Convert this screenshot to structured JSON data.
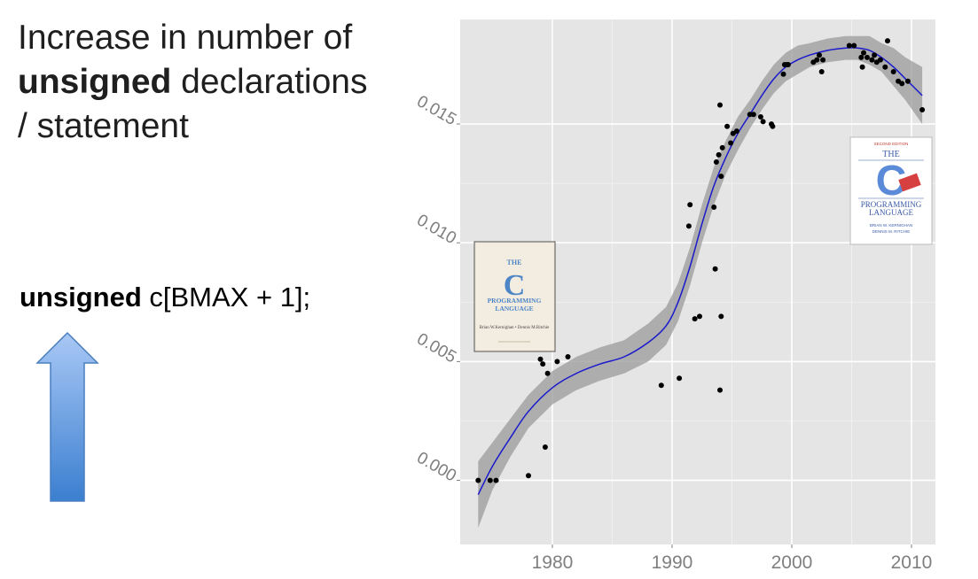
{
  "headline": {
    "line1": "Increase in number of",
    "line2_bold": "unsigned",
    "line2_rest": " declarations",
    "line3": "/ statement"
  },
  "code": {
    "keyword": "unsigned",
    "rest": " c[BMAX + 1];"
  },
  "arrow": {
    "icon": "up-arrow-icon",
    "color_top": "#a9c8f5",
    "color_bottom": "#3b7fd0"
  },
  "covers": {
    "first": {
      "title": "THE",
      "logo": "C",
      "subtitle1": "PROGRAMMING",
      "subtitle2": "LANGUAGE",
      "authors": "Brian W.Kernighan • Dennis M.Ritchie"
    },
    "second": {
      "edition": "SECOND EDITION",
      "title": "THE",
      "logo": "C",
      "subtitle1": "PROGRAMMING",
      "subtitle2": "LANGUAGE",
      "authors1": "BRIAN W. KERNIGHAN",
      "authors2": "DENNIS M. RITCHIE"
    }
  },
  "chart_data": {
    "type": "scatter",
    "title": "",
    "xlabel": "",
    "ylabel": "",
    "xlim": [
      1972.3,
      2012
    ],
    "ylim": [
      -0.0027,
      0.0194
    ],
    "x_ticks": [
      1980,
      1990,
      2000,
      2010
    ],
    "y_ticks": [
      0.0,
      0.005,
      0.01,
      0.015
    ],
    "y_tick_labels": [
      "0.000",
      "0.005",
      "0.010",
      "0.015"
    ],
    "grid": true,
    "colors": {
      "panel": "#e5e5e5",
      "grid": "#ffffff",
      "points": "#000000",
      "smooth": "#1a1acc",
      "band": "#999999"
    },
    "points": [
      [
        1973.8,
        0.0
      ],
      [
        1974.8,
        0.0
      ],
      [
        1975.3,
        0.0
      ],
      [
        1978.0,
        0.0002
      ],
      [
        1979.0,
        0.0051
      ],
      [
        1979.2,
        0.0049
      ],
      [
        1979.4,
        0.0014
      ],
      [
        1979.6,
        0.0045
      ],
      [
        1980.4,
        0.005
      ],
      [
        1981.3,
        0.0052
      ],
      [
        1989.1,
        0.004
      ],
      [
        1990.6,
        0.0043
      ],
      [
        1991.4,
        0.0107
      ],
      [
        1991.5,
        0.0116
      ],
      [
        1991.9,
        0.0068
      ],
      [
        1992.3,
        0.0069
      ],
      [
        1993.5,
        0.0115
      ],
      [
        1993.6,
        0.0089
      ],
      [
        1993.7,
        0.0134
      ],
      [
        1993.9,
        0.0137
      ],
      [
        1994.0,
        0.0158
      ],
      [
        1994.0,
        0.0038
      ],
      [
        1994.1,
        0.0128
      ],
      [
        1994.1,
        0.0069
      ],
      [
        1994.2,
        0.014
      ],
      [
        1994.6,
        0.0149
      ],
      [
        1994.9,
        0.0142
      ],
      [
        1995.1,
        0.0146
      ],
      [
        1995.4,
        0.0147
      ],
      [
        1996.5,
        0.0154
      ],
      [
        1996.8,
        0.0154
      ],
      [
        1997.4,
        0.0153
      ],
      [
        1997.6,
        0.0151
      ],
      [
        1998.3,
        0.015
      ],
      [
        1998.4,
        0.0149
      ],
      [
        1999.3,
        0.0171
      ],
      [
        1999.4,
        0.0175
      ],
      [
        1999.6,
        0.0175
      ],
      [
        1999.7,
        0.0175
      ],
      [
        2001.8,
        0.0176
      ],
      [
        2002.1,
        0.0177
      ],
      [
        2002.3,
        0.0179
      ],
      [
        2002.5,
        0.0172
      ],
      [
        2002.6,
        0.0177
      ],
      [
        2004.8,
        0.0183
      ],
      [
        2005.2,
        0.0183
      ],
      [
        2005.8,
        0.0178
      ],
      [
        2005.9,
        0.0174
      ],
      [
        2006.0,
        0.018
      ],
      [
        2006.3,
        0.0178
      ],
      [
        2006.7,
        0.0177
      ],
      [
        2006.9,
        0.0179
      ],
      [
        2007.1,
        0.0176
      ],
      [
        2007.4,
        0.0177
      ],
      [
        2007.8,
        0.0174
      ],
      [
        2008.0,
        0.0185
      ],
      [
        2008.5,
        0.0172
      ],
      [
        2008.9,
        0.0168
      ],
      [
        2009.2,
        0.0167
      ],
      [
        2009.7,
        0.0168
      ],
      [
        2010.9,
        0.0156
      ]
    ],
    "smooth": [
      [
        1973.8,
        -0.0006
      ],
      [
        1975.0,
        0.0006
      ],
      [
        1976.5,
        0.0018
      ],
      [
        1978.0,
        0.0029
      ],
      [
        1980.0,
        0.0039
      ],
      [
        1982.0,
        0.0045
      ],
      [
        1984.0,
        0.0049
      ],
      [
        1986.0,
        0.0052
      ],
      [
        1988.0,
        0.0058
      ],
      [
        1989.5,
        0.0065
      ],
      [
        1990.5,
        0.0075
      ],
      [
        1991.5,
        0.009
      ],
      [
        1992.5,
        0.0108
      ],
      [
        1993.5,
        0.0124
      ],
      [
        1994.5,
        0.0136
      ],
      [
        1995.5,
        0.0146
      ],
      [
        1996.5,
        0.0154
      ],
      [
        1997.5,
        0.0162
      ],
      [
        1998.5,
        0.0169
      ],
      [
        1999.5,
        0.0174
      ],
      [
        2000.5,
        0.0177
      ],
      [
        2001.5,
        0.0179
      ],
      [
        2003.0,
        0.0181
      ],
      [
        2004.5,
        0.0182
      ],
      [
        2005.5,
        0.0182
      ],
      [
        2006.5,
        0.0181
      ],
      [
        2007.5,
        0.0178
      ],
      [
        2008.5,
        0.0174
      ],
      [
        2009.5,
        0.0169
      ],
      [
        2010.9,
        0.0162
      ]
    ],
    "band_halfwidth": [
      0.0014,
      0.001,
      0.0008,
      0.0007,
      0.0007,
      0.0007,
      0.0007,
      0.0007,
      0.0008,
      0.0008,
      0.0008,
      0.0008,
      0.0008,
      0.0008,
      0.0007,
      0.0007,
      0.0006,
      0.0006,
      0.0006,
      0.0006,
      0.0006,
      0.0005,
      0.0005,
      0.0005,
      0.0005,
      0.0006,
      0.0006,
      0.0008,
      0.0009,
      0.0012
    ]
  }
}
